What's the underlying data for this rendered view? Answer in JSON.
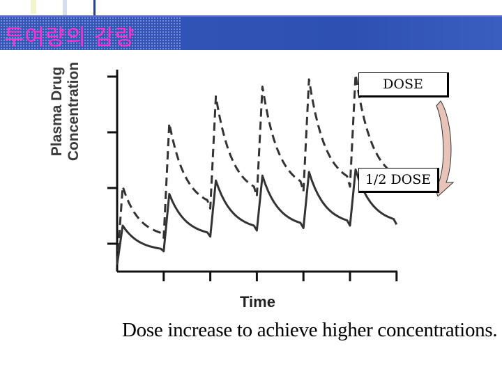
{
  "slide": {
    "title": "투여량의 감량",
    "caption": "Dose increase to achieve higher concentrations."
  },
  "colors": {
    "title_text": "#ff2fd0",
    "title_bar": "#3457b8",
    "arrow_fill": "#e8c4b8"
  },
  "legend_boxes": {
    "dose": "DOSE",
    "half_dose": "1/2 DOSE"
  },
  "chart_data": {
    "type": "line",
    "ylabel_line1": "Plasma Drug",
    "ylabel_line2": "Concentration",
    "xlabel": "Time",
    "x_ticks": 6,
    "y_ticks": 4,
    "grid": false,
    "series": [
      {
        "name": "DOSE",
        "style": "dashed",
        "peaks": [
          3.2,
          5.8,
          6.9,
          7.3,
          7.6,
          7.8
        ],
        "troughs": [
          1.1,
          2.3,
          2.8,
          3.0,
          3.2,
          3.3
        ]
      },
      {
        "name": "1/2 DOSE",
        "style": "solid",
        "peaks": [
          1.6,
          2.9,
          3.45,
          3.65,
          3.8,
          3.9
        ],
        "troughs": [
          0.55,
          1.15,
          1.4,
          1.5,
          1.6,
          1.65
        ]
      }
    ]
  }
}
